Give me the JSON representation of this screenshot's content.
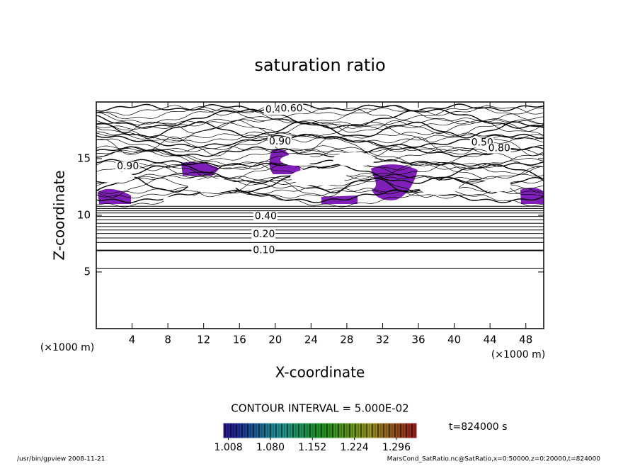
{
  "chart_data": {
    "type": "contour",
    "title": "saturation ratio",
    "x_label": "X-coordinate",
    "y_label": "Z-coordinate",
    "x_unit": "(×1000 m)",
    "y_unit": "(×1000 m)",
    "xlim": [
      0,
      50
    ],
    "ylim": [
      0,
      20
    ],
    "xticks": [
      4,
      8,
      12,
      16,
      20,
      24,
      28,
      32,
      36,
      40,
      44,
      48
    ],
    "yticks": [
      5,
      10,
      15
    ],
    "contour_lines_z": [
      5.3,
      6.9,
      7.6,
      8.0,
      8.4,
      8.7,
      9.0,
      9.3,
      9.6,
      9.9,
      10.2,
      10.4,
      10.6,
      10.8
    ],
    "contour_labels": [
      {
        "label": "0.10",
        "value": 0.1,
        "x": 17.5,
        "z": 6.9
      },
      {
        "label": "0.20",
        "value": 0.2,
        "x": 17.5,
        "z": 8.3
      },
      {
        "label": "0.40",
        "value": 0.4,
        "x": 17.7,
        "z": 9.9
      },
      {
        "label": "0.90",
        "value": 0.9,
        "x": 2.3,
        "z": 14.3
      },
      {
        "label": "0.90",
        "value": 0.9,
        "x": 19.3,
        "z": 16.5
      },
      {
        "label": "0.40",
        "value": 0.4,
        "x": 18.9,
        "z": 19.3
      },
      {
        "label": "0.60",
        "value": 0.6,
        "x": 20.6,
        "z": 19.4
      },
      {
        "label": "0.50",
        "value": 0.5,
        "x": 41.9,
        "z": 16.4
      },
      {
        "label": "0.80",
        "value": 0.8,
        "x": 43.8,
        "z": 15.9
      }
    ],
    "contour_interval": "CONTOUR INTERVAL = 5.000E-02",
    "colorbar": {
      "clim": [
        1.0,
        1.33
      ],
      "ticks": [
        {
          "value": 1.008,
          "label": "1.008"
        },
        {
          "value": 1.08,
          "label": "1.080"
        },
        {
          "value": 1.152,
          "label": "1.152"
        },
        {
          "value": 1.224,
          "label": "1.224"
        },
        {
          "value": 1.296,
          "label": "1.296"
        }
      ]
    },
    "time_label": "t=824000 s",
    "footer_left": "/usr/bin/gpview   2008-11-21",
    "footer_right": "MarsCond_SatRatio.nc@SatRatio,x=0:50000,z=0:20000,t=824000"
  }
}
